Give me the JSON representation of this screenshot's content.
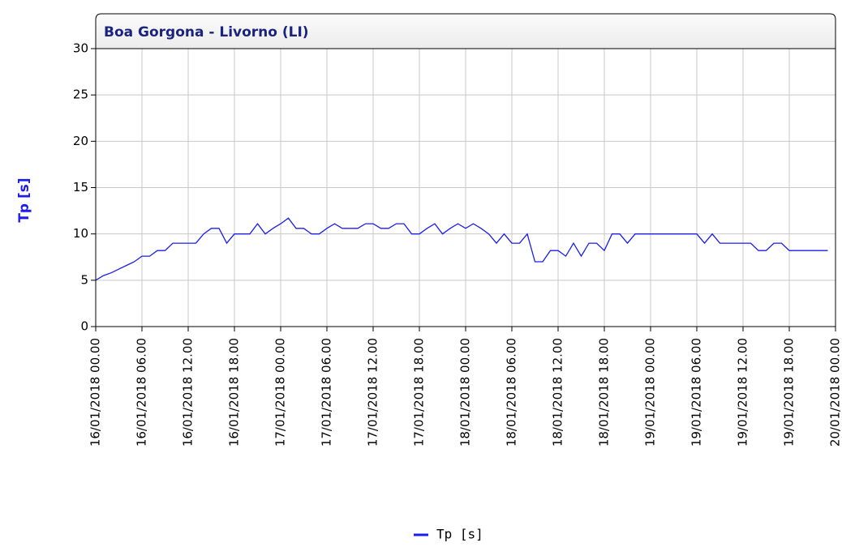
{
  "chart_data": {
    "type": "line",
    "title": "Boa Gorgona - Livorno (LI)",
    "y_label": "Tp [s]",
    "x": [
      "2018-01-16T00:00",
      "2018-01-16T01:00",
      "2018-01-16T02:00",
      "2018-01-16T03:00",
      "2018-01-16T04:00",
      "2018-01-16T05:00",
      "2018-01-16T06:00",
      "2018-01-16T07:00",
      "2018-01-16T08:00",
      "2018-01-16T09:00",
      "2018-01-16T10:00",
      "2018-01-16T11:00",
      "2018-01-16T12:00",
      "2018-01-16T13:00",
      "2018-01-16T14:00",
      "2018-01-16T15:00",
      "2018-01-16T16:00",
      "2018-01-16T17:00",
      "2018-01-16T18:00",
      "2018-01-16T19:00",
      "2018-01-16T20:00",
      "2018-01-16T21:00",
      "2018-01-16T22:00",
      "2018-01-16T23:00",
      "2018-01-17T00:00",
      "2018-01-17T01:00",
      "2018-01-17T02:00",
      "2018-01-17T03:00",
      "2018-01-17T04:00",
      "2018-01-17T05:00",
      "2018-01-17T06:00",
      "2018-01-17T07:00",
      "2018-01-17T08:00",
      "2018-01-17T09:00",
      "2018-01-17T10:00",
      "2018-01-17T11:00",
      "2018-01-17T12:00",
      "2018-01-17T13:00",
      "2018-01-17T14:00",
      "2018-01-17T15:00",
      "2018-01-17T16:00",
      "2018-01-17T17:00",
      "2018-01-17T18:00",
      "2018-01-17T19:00",
      "2018-01-17T20:00",
      "2018-01-17T21:00",
      "2018-01-17T22:00",
      "2018-01-17T23:00",
      "2018-01-18T00:00",
      "2018-01-18T01:00",
      "2018-01-18T02:00",
      "2018-01-18T03:00",
      "2018-01-18T04:00",
      "2018-01-18T05:00",
      "2018-01-18T06:00",
      "2018-01-18T07:00",
      "2018-01-18T08:00",
      "2018-01-18T09:00",
      "2018-01-18T10:00",
      "2018-01-18T11:00",
      "2018-01-18T12:00",
      "2018-01-18T13:00",
      "2018-01-18T14:00",
      "2018-01-18T15:00",
      "2018-01-18T16:00",
      "2018-01-18T17:00",
      "2018-01-18T18:00",
      "2018-01-18T19:00",
      "2018-01-18T20:00",
      "2018-01-18T21:00",
      "2018-01-18T22:00",
      "2018-01-18T23:00",
      "2018-01-19T00:00",
      "2018-01-19T01:00",
      "2018-01-19T02:00",
      "2018-01-19T03:00",
      "2018-01-19T04:00",
      "2018-01-19T05:00",
      "2018-01-19T06:00",
      "2018-01-19T07:00",
      "2018-01-19T08:00",
      "2018-01-19T09:00",
      "2018-01-19T10:00",
      "2018-01-19T11:00",
      "2018-01-19T12:00",
      "2018-01-19T13:00",
      "2018-01-19T14:00",
      "2018-01-19T15:00",
      "2018-01-19T16:00",
      "2018-01-19T17:00",
      "2018-01-19T18:00",
      "2018-01-19T19:00",
      "2018-01-19T20:00",
      "2018-01-19T21:00",
      "2018-01-19T22:00",
      "2018-01-19T23:00"
    ],
    "series": [
      {
        "name": "Tp [s]",
        "color": "#1c1cf0",
        "values": [
          5,
          5.5,
          5.8,
          6.2,
          6.6,
          7,
          7.6,
          7.6,
          8.2,
          8.2,
          9,
          9,
          9,
          9,
          10,
          10.6,
          10.6,
          9,
          10,
          10,
          10,
          11.1,
          10,
          10.6,
          11.1,
          11.7,
          10.6,
          10.6,
          10,
          10,
          10.6,
          11.1,
          10.6,
          10.6,
          10.6,
          11.1,
          11.1,
          10.6,
          10.6,
          11.1,
          11.1,
          10,
          10,
          10.6,
          11.1,
          10,
          10.6,
          11.1,
          10.6,
          11.1,
          10.6,
          10,
          9,
          10,
          9,
          9,
          10,
          7,
          7,
          8.2,
          8.2,
          7.6,
          9,
          7.6,
          9,
          9,
          8.2,
          10,
          10,
          9,
          10,
          10,
          10,
          10,
          10,
          10,
          10,
          10,
          10,
          9,
          10,
          9,
          9,
          9,
          9,
          9,
          8.2,
          8.2,
          9,
          9,
          8.2,
          8.2,
          8.2,
          8.2,
          8.2,
          8.2
        ]
      }
    ],
    "xlim": [
      "2018-01-16T00:00",
      "2018-01-20T00:00"
    ],
    "xticks": [
      {
        "value": "2018-01-16T00:00",
        "label": "16/01/2018 00.00"
      },
      {
        "value": "2018-01-16T06:00",
        "label": "16/01/2018 06.00"
      },
      {
        "value": "2018-01-16T12:00",
        "label": "16/01/2018 12.00"
      },
      {
        "value": "2018-01-16T18:00",
        "label": "16/01/2018 18.00"
      },
      {
        "value": "2018-01-17T00:00",
        "label": "17/01/2018 00.00"
      },
      {
        "value": "2018-01-17T06:00",
        "label": "17/01/2018 06.00"
      },
      {
        "value": "2018-01-17T12:00",
        "label": "17/01/2018 12.00"
      },
      {
        "value": "2018-01-17T18:00",
        "label": "17/01/2018 18.00"
      },
      {
        "value": "2018-01-18T00:00",
        "label": "18/01/2018 00.00"
      },
      {
        "value": "2018-01-18T06:00",
        "label": "18/01/2018 06.00"
      },
      {
        "value": "2018-01-18T12:00",
        "label": "18/01/2018 12.00"
      },
      {
        "value": "2018-01-18T18:00",
        "label": "18/01/2018 18.00"
      },
      {
        "value": "2018-01-19T00:00",
        "label": "19/01/2018 00.00"
      },
      {
        "value": "2018-01-19T06:00",
        "label": "19/01/2018 06.00"
      },
      {
        "value": "2018-01-19T12:00",
        "label": "19/01/2018 12.00"
      },
      {
        "value": "2018-01-19T18:00",
        "label": "19/01/2018 18.00"
      },
      {
        "value": "2018-01-20T00:00",
        "label": "20/01/2018 00.00"
      }
    ],
    "ylim": [
      0,
      30
    ],
    "yticks": [
      0,
      5,
      10,
      15,
      20,
      25,
      30
    ],
    "grid": true,
    "legend": "bottom"
  }
}
